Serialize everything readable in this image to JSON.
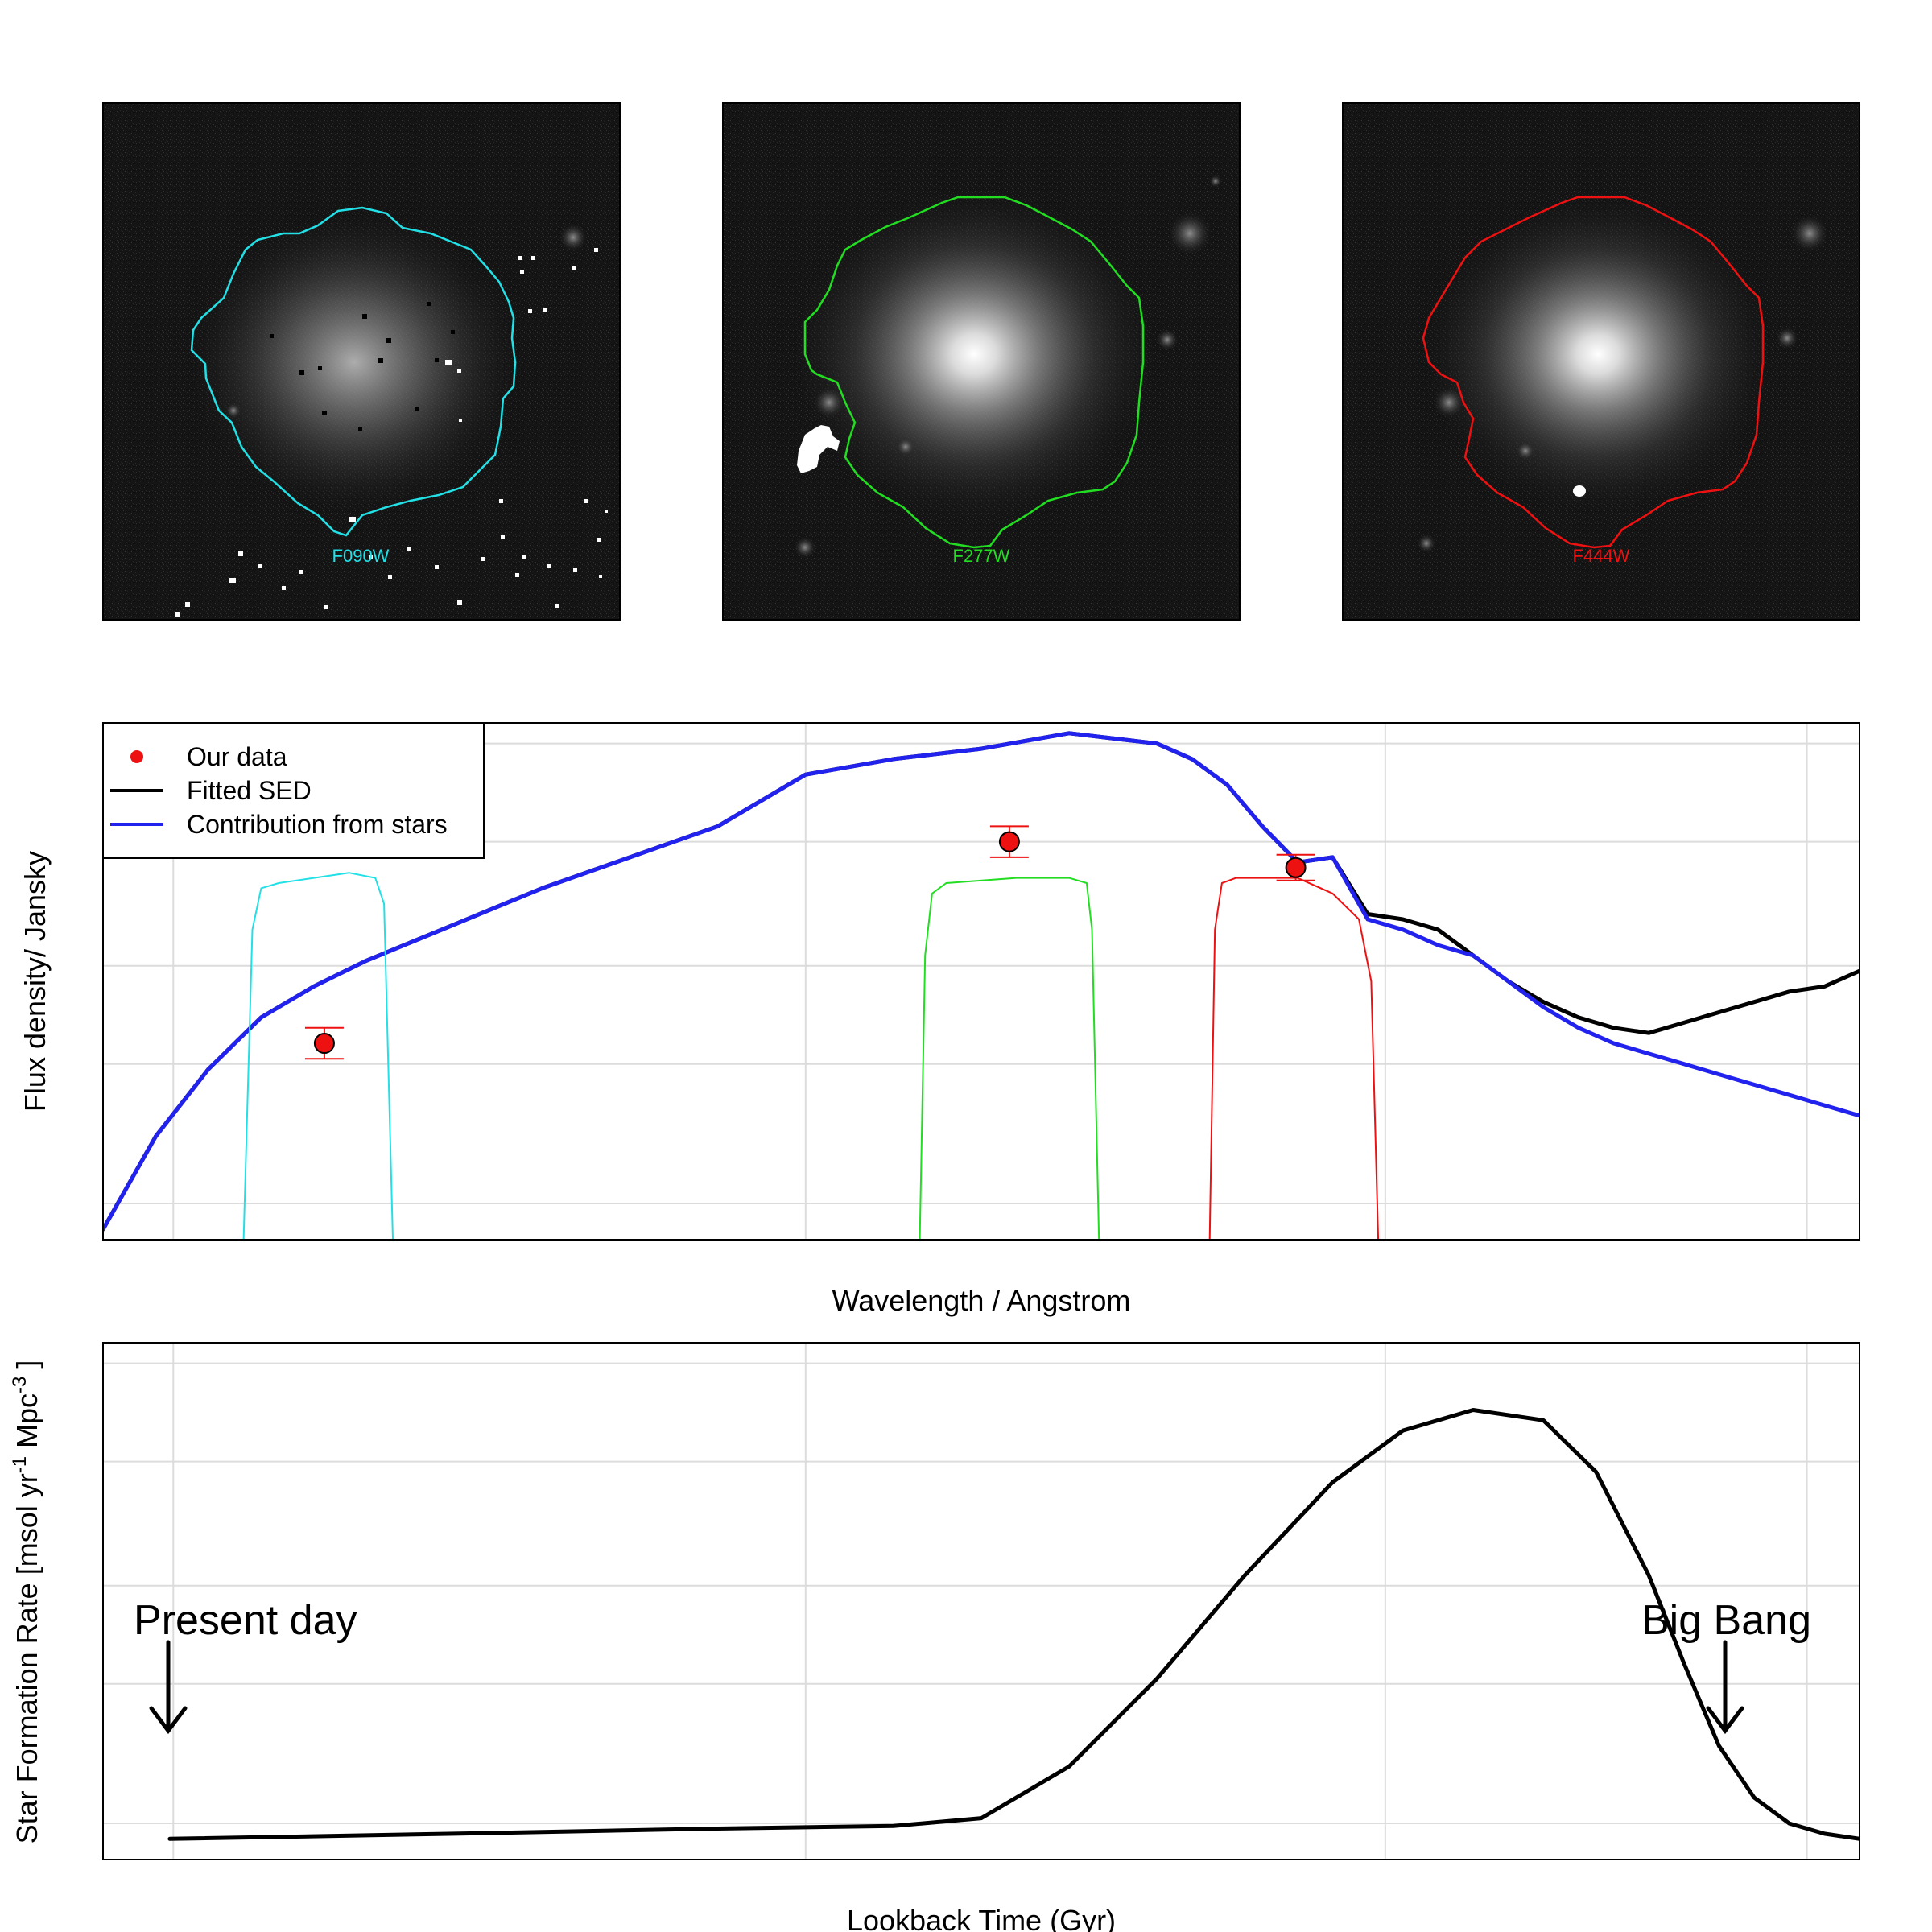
{
  "images": [
    {
      "band": "F090W",
      "color": "#22e0e6"
    },
    {
      "band": "F277W",
      "color": "#22dd22"
    },
    {
      "band": "F444W",
      "color": "#ee1111"
    }
  ],
  "chart_data": [
    {
      "type": "line",
      "xlabel": "Wavelength / Angstrom",
      "ylabel": "Flux density/ Jansky",
      "legend": {
        "position": "top-left",
        "entries": [
          {
            "label": "Our data",
            "marker": "point",
            "color": "#ee1111"
          },
          {
            "label": "Fitted SED",
            "marker": "line",
            "color": "#000000"
          },
          {
            "label": "Contribution from stars",
            "marker": "line",
            "color": "#2222ee"
          }
        ]
      },
      "grid": true,
      "ticks_labeled": false,
      "xlim": [
        0.0,
        1.0
      ],
      "ylim": [
        0.0,
        1.0
      ],
      "series": [
        {
          "name": "Fitted SED",
          "color": "#000000",
          "x": [
            0.0,
            0.03,
            0.06,
            0.09,
            0.12,
            0.15,
            0.2,
            0.25,
            0.3,
            0.35,
            0.4,
            0.45,
            0.5,
            0.55,
            0.6,
            0.62,
            0.64,
            0.66,
            0.68,
            0.7,
            0.72,
            0.74,
            0.76,
            0.78,
            0.8,
            0.82,
            0.84,
            0.86,
            0.88,
            0.9,
            0.92,
            0.94,
            0.96,
            0.98,
            1.0
          ],
          "y": [
            0.02,
            0.2,
            0.33,
            0.43,
            0.49,
            0.54,
            0.61,
            0.68,
            0.74,
            0.8,
            0.9,
            0.93,
            0.95,
            0.98,
            0.96,
            0.93,
            0.88,
            0.8,
            0.73,
            0.74,
            0.63,
            0.62,
            0.6,
            0.55,
            0.5,
            0.46,
            0.43,
            0.41,
            0.4,
            0.42,
            0.44,
            0.46,
            0.48,
            0.49,
            0.52
          ]
        },
        {
          "name": "Contribution from stars",
          "color": "#2222ee",
          "x": [
            0.0,
            0.03,
            0.06,
            0.09,
            0.12,
            0.15,
            0.2,
            0.25,
            0.3,
            0.35,
            0.4,
            0.45,
            0.5,
            0.55,
            0.6,
            0.62,
            0.64,
            0.66,
            0.68,
            0.7,
            0.72,
            0.74,
            0.76,
            0.78,
            0.8,
            0.82,
            0.84,
            0.86,
            0.88,
            0.9,
            0.92,
            0.94,
            0.96,
            0.98,
            1.0
          ],
          "y": [
            0.02,
            0.2,
            0.33,
            0.43,
            0.49,
            0.54,
            0.61,
            0.68,
            0.74,
            0.8,
            0.9,
            0.93,
            0.95,
            0.98,
            0.96,
            0.93,
            0.88,
            0.8,
            0.73,
            0.74,
            0.62,
            0.6,
            0.57,
            0.55,
            0.5,
            0.45,
            0.41,
            0.38,
            0.36,
            0.34,
            0.32,
            0.3,
            0.28,
            0.26,
            0.24
          ]
        },
        {
          "name": "F090W filter",
          "color": "#22e0e6",
          "x": [
            0.08,
            0.085,
            0.09,
            0.1,
            0.12,
            0.14,
            0.155,
            0.16,
            0.165
          ],
          "y": [
            0.0,
            0.6,
            0.68,
            0.69,
            0.7,
            0.71,
            0.7,
            0.65,
            0.0
          ]
        },
        {
          "name": "F277W filter",
          "color": "#22dd22",
          "x": [
            0.465,
            0.468,
            0.472,
            0.48,
            0.52,
            0.55,
            0.56,
            0.563,
            0.567
          ],
          "y": [
            0.0,
            0.55,
            0.67,
            0.69,
            0.7,
            0.7,
            0.69,
            0.6,
            0.0
          ]
        },
        {
          "name": "F444W filter",
          "color": "#ee1111",
          "x": [
            0.63,
            0.633,
            0.637,
            0.645,
            0.68,
            0.7,
            0.715,
            0.722,
            0.726
          ],
          "y": [
            0.0,
            0.6,
            0.69,
            0.7,
            0.7,
            0.67,
            0.62,
            0.5,
            0.0
          ]
        }
      ],
      "points": {
        "name": "Our data",
        "color": "#ee1111",
        "x": [
          0.126,
          0.516,
          0.679
        ],
        "y": [
          0.38,
          0.77,
          0.72
        ],
        "yerr": [
          0.03,
          0.03,
          0.025
        ]
      }
    },
    {
      "type": "line",
      "xlabel": "Lookback Time (Gyr)",
      "ylabel": "Star Formation Rate [msol yr",
      "ylabel_units": [
        "-1",
        " Mpc",
        "-3",
        " ]"
      ],
      "grid": true,
      "ticks_labeled": false,
      "xlim": [
        0.0,
        1.0
      ],
      "ylim": [
        0.0,
        1.0
      ],
      "series": [
        {
          "name": "SFR",
          "color": "#000000",
          "x": [
            0.038,
            0.2,
            0.35,
            0.45,
            0.5,
            0.55,
            0.6,
            0.65,
            0.7,
            0.74,
            0.78,
            0.82,
            0.85,
            0.88,
            0.9,
            0.92,
            0.94,
            0.96,
            0.98,
            1.0
          ],
          "y": [
            0.04,
            0.05,
            0.06,
            0.065,
            0.08,
            0.18,
            0.35,
            0.55,
            0.73,
            0.83,
            0.87,
            0.85,
            0.75,
            0.55,
            0.38,
            0.22,
            0.12,
            0.07,
            0.05,
            0.04
          ]
        }
      ],
      "annotations": [
        {
          "text": "Present day",
          "arrow": "down"
        },
        {
          "text": "Big Bang",
          "arrow": "down"
        }
      ]
    }
  ]
}
